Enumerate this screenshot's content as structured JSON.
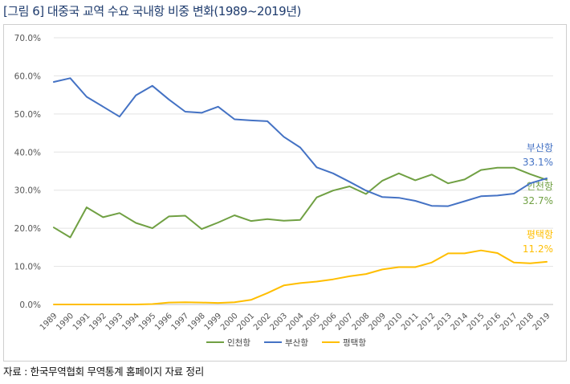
{
  "title": "[그림 6] 대중국 교역 수요 국내항 비중 변화(1989~2019년)",
  "source": "자료 : 한국무역협회 무역통계 홈페이지 자료 정리",
  "chart_data": {
    "type": "line",
    "title": "",
    "xlabel": "",
    "ylabel": "",
    "ylim": [
      0,
      70
    ],
    "yticks": [
      "0.0%",
      "10.0%",
      "20.0%",
      "30.0%",
      "40.0%",
      "50.0%",
      "60.0%",
      "70.0%"
    ],
    "grid": "horizontal",
    "legend_position": "bottom",
    "categories": [
      "1989",
      "1990",
      "1991",
      "1992",
      "1993",
      "1994",
      "1995",
      "1996",
      "1997",
      "1998",
      "1999",
      "2000",
      "2001",
      "2002",
      "2003",
      "2004",
      "2005",
      "2006",
      "2007",
      "2008",
      "2009",
      "2010",
      "2011",
      "2012",
      "2013",
      "2014",
      "2015",
      "2016",
      "2017",
      "2018",
      "2019"
    ],
    "series": [
      {
        "name": "인천항",
        "color": "#70a043",
        "values": [
          20.2,
          17.6,
          25.5,
          22.9,
          24.0,
          21.4,
          20.0,
          23.1,
          23.3,
          19.8,
          21.5,
          23.4,
          21.9,
          22.4,
          22.0,
          22.2,
          28.1,
          29.9,
          31.0,
          29.0,
          32.5,
          34.4,
          32.6,
          34.1,
          31.8,
          32.8,
          35.3,
          35.9,
          35.9,
          34.2,
          32.7
        ],
        "end_label_name": "인천항",
        "end_label_value": "32.7%"
      },
      {
        "name": "부산항",
        "color": "#4472c4",
        "values": [
          58.4,
          59.4,
          54.5,
          51.9,
          49.3,
          54.9,
          57.4,
          53.8,
          50.6,
          50.3,
          51.9,
          48.6,
          48.3,
          48.1,
          44.0,
          41.2,
          36.0,
          34.4,
          32.2,
          29.9,
          28.2,
          28.0,
          27.2,
          25.9,
          25.8,
          27.1,
          28.4,
          28.6,
          29.1,
          31.8,
          33.1
        ],
        "end_label_name": "부산항",
        "end_label_value": "33.1%"
      },
      {
        "name": "평택항",
        "color": "#ffbe00",
        "values": [
          0.0,
          0.0,
          0.0,
          0.0,
          0.0,
          0.0,
          0.1,
          0.5,
          0.6,
          0.5,
          0.4,
          0.6,
          1.2,
          3.0,
          5.0,
          5.6,
          6.0,
          6.6,
          7.4,
          8.0,
          9.2,
          9.8,
          9.8,
          11.0,
          13.4,
          13.4,
          14.2,
          13.5,
          11.0,
          10.8,
          11.2
        ],
        "end_label_name": "평택항",
        "end_label_value": "11.2%"
      }
    ]
  }
}
